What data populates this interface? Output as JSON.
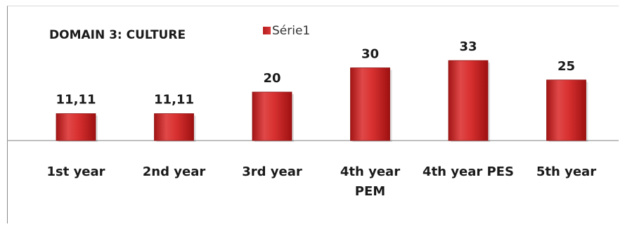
{
  "chart_data": {
    "type": "bar",
    "title": "DOMAIN 3:  CULTURE",
    "categories": [
      [
        "1st year"
      ],
      [
        "2nd year"
      ],
      [
        "3rd year"
      ],
      [
        "4th  year",
        "PEM"
      ],
      [
        "4th year PES"
      ],
      [
        "5th year"
      ]
    ],
    "series": [
      {
        "name": "Série1",
        "values": [
          11.11,
          11.11,
          20,
          30,
          33,
          25
        ],
        "labels": [
          "11,11",
          "11,11",
          "20",
          "30",
          "33",
          "25"
        ],
        "color": "#d32f2f"
      }
    ],
    "xlabel": "",
    "ylabel": "",
    "ylim": [
      0,
      40
    ],
    "grid": false,
    "legend_position": "top"
  }
}
